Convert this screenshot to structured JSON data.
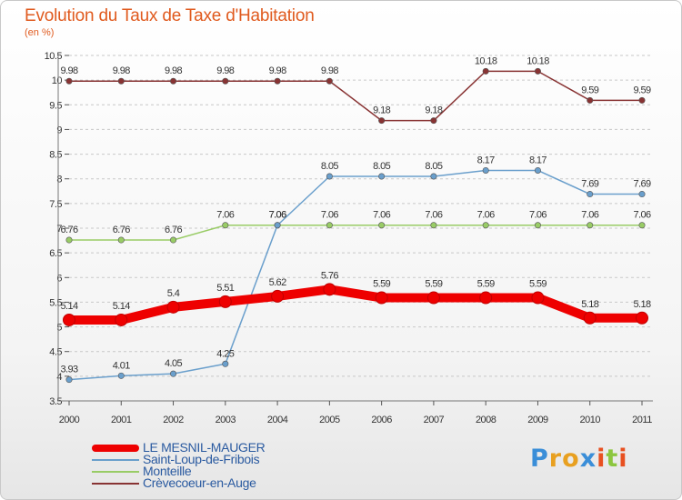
{
  "header": {
    "title": "Evolution du Taux de Taxe d'Habitation",
    "subtitle": "(en %)"
  },
  "chart_data": {
    "type": "line",
    "title": "Evolution du Taux de Taxe d'Habitation",
    "subtitle": "(en %)",
    "xlabel": "",
    "ylabel": "",
    "x": [
      "2000",
      "2001",
      "2002",
      "2003",
      "2004",
      "2005",
      "2006",
      "2007",
      "2008",
      "2009",
      "2010",
      "2011"
    ],
    "ylim": [
      3.5,
      10.5
    ],
    "yticks": [
      "3.5",
      "4",
      "4.5",
      "5",
      "5.5",
      "6",
      "6.5",
      "7",
      "7.5",
      "8",
      "8.5",
      "9",
      "9.5",
      "10",
      "10.5"
    ],
    "grid": "horizontal-dashed",
    "legend_position": "bottom-left",
    "series": [
      {
        "name": "LE MESNIL-MAUGER",
        "color": "#ee0000",
        "values": [
          5.14,
          5.14,
          5.4,
          5.51,
          5.62,
          5.76,
          5.59,
          5.59,
          5.59,
          5.59,
          5.18,
          5.18
        ],
        "labels": [
          "5.14",
          "5.14",
          "5.4",
          "5.51",
          "5.62",
          "5.76",
          "5.59",
          "5.59",
          "5.59",
          "5.59",
          "5.18",
          "5.18"
        ]
      },
      {
        "name": "Saint-Loup-de-Fribois",
        "color": "#6a9fcc",
        "values": [
          3.93,
          4.01,
          4.05,
          4.25,
          7.06,
          8.05,
          8.05,
          8.05,
          8.17,
          8.17,
          7.69,
          7.69
        ],
        "labels": [
          "3.93",
          "4.01",
          "4.05",
          "4.25",
          "7.06",
          "8.05",
          "8.05",
          "8.05",
          "8.17",
          "8.17",
          "7.69",
          "7.69"
        ]
      },
      {
        "name": "Monteille",
        "color": "#99cc66",
        "values": [
          6.76,
          6.76,
          6.76,
          7.06,
          7.06,
          7.06,
          7.06,
          7.06,
          7.06,
          7.06,
          7.06,
          7.06
        ],
        "labels": [
          "6.76",
          "6.76",
          "6.76",
          "7.06",
          "7.06",
          "7.06",
          "7.06",
          "7.06",
          "7.06",
          "7.06",
          "7.06",
          "7.06"
        ]
      },
      {
        "name": "Crèvecoeur-en-Auge",
        "color": "#883333",
        "values": [
          9.98,
          9.98,
          9.98,
          9.98,
          9.98,
          9.98,
          9.18,
          9.18,
          10.18,
          10.18,
          9.59,
          9.59
        ],
        "labels": [
          "9.98",
          "9.98",
          "9.98",
          "9.98",
          "9.98",
          "9.98",
          "9.18",
          "9.18",
          "10.18",
          "10.18",
          "9.59",
          "9.59"
        ]
      }
    ]
  },
  "legend": {
    "items": [
      {
        "label": "LE MESNIL-MAUGER",
        "color": "#ee0000"
      },
      {
        "label": "Saint-Loup-de-Fribois",
        "color": "#6a9fcc"
      },
      {
        "label": "Monteille",
        "color": "#99cc66"
      },
      {
        "label": "Crèvecoeur-en-Auge",
        "color": "#883333"
      }
    ]
  },
  "logo": {
    "letters": [
      "P",
      "r",
      "o",
      "x",
      "i",
      "t",
      "i"
    ],
    "colors": [
      "#3a8ed8",
      "#e8a020",
      "#e8a020",
      "#3a8ed8",
      "#e85020",
      "#8cc63f",
      "#e85020"
    ]
  }
}
